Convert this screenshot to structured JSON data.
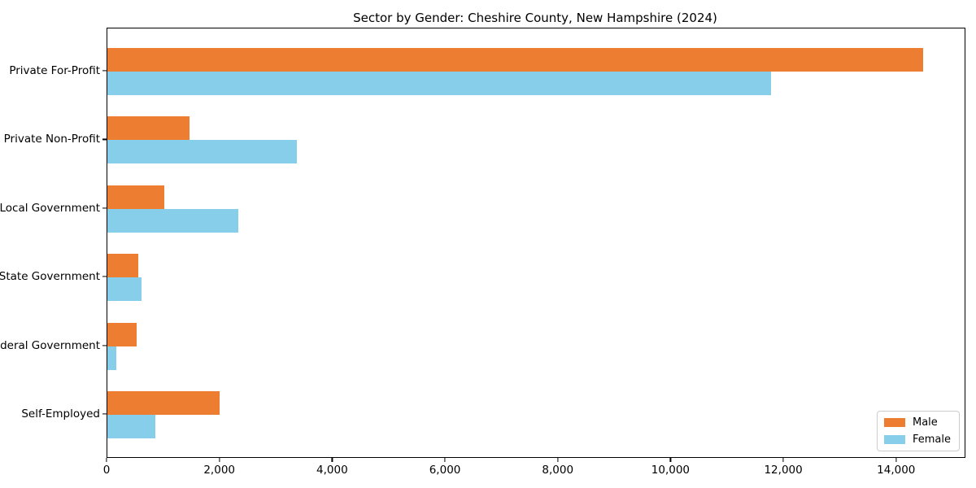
{
  "page": {
    "background": "#ffffff"
  },
  "chart_data": {
    "type": "bar",
    "orientation": "horizontal",
    "title": "Sector by Gender: Cheshire County, New Hampshire (2024)",
    "xlabel": "",
    "ylabel": "",
    "categories": [
      "Private For-Profit",
      "Private Non-Profit",
      "Local Government",
      "State Government",
      "Federal Government",
      "Self-Employed"
    ],
    "series": [
      {
        "name": "Male",
        "color": "#ED7D31",
        "values": [
          14460,
          1450,
          1010,
          550,
          520,
          1990
        ]
      },
      {
        "name": "Female",
        "color": "#87CEEB",
        "values": [
          11770,
          3360,
          2320,
          610,
          160,
          850
        ]
      }
    ],
    "xlim": [
      0,
      15200
    ],
    "xticks": [
      0,
      2000,
      4000,
      6000,
      8000,
      10000,
      12000,
      14000
    ],
    "xtick_labels": [
      "0",
      "2,000",
      "4,000",
      "6,000",
      "8,000",
      "10,000",
      "12,000",
      "14,000"
    ],
    "grid": false,
    "legend": {
      "position": "lower right",
      "entries": [
        "Male",
        "Female"
      ]
    },
    "spine_color": "#000000",
    "text_color": "#000000"
  }
}
